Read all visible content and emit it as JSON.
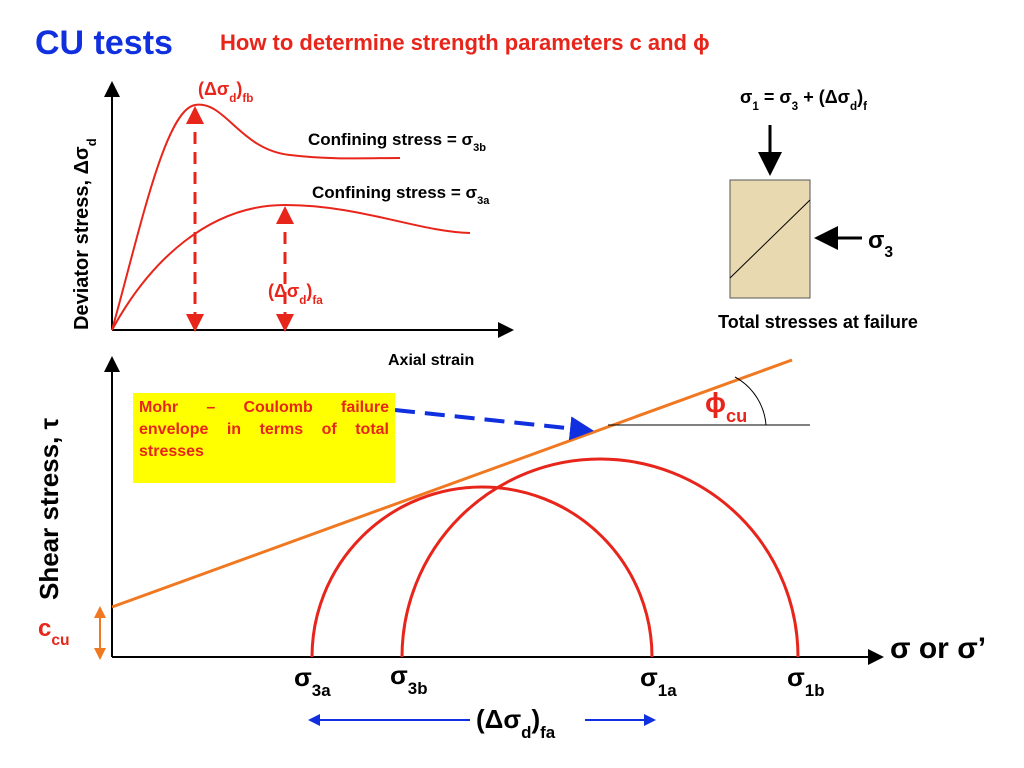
{
  "header": {
    "title": "CU tests",
    "subtitle": "How to determine strength parameters c and ϕ"
  },
  "top_chart": {
    "y_axis_label": [
      "Deviator stress, Δσ",
      "d"
    ],
    "x_axis_label": "Axial strain",
    "peak_b": [
      "(Δσ",
      "d",
      ")",
      "fb"
    ],
    "peak_a": [
      "(Δσ",
      "d",
      ")",
      "fa"
    ],
    "curve_b_label": [
      "Confining stress = σ",
      "3b"
    ],
    "curve_a_label": [
      "Confining stress = σ",
      "3a"
    ]
  },
  "specimen": {
    "equation": [
      "σ",
      "1",
      " = σ",
      "3",
      " + (Δσ",
      "d",
      ")",
      "f"
    ],
    "lateral": [
      "σ",
      "3"
    ],
    "caption": "Total stresses at failure"
  },
  "mohr": {
    "y_axis_label": "Shear stress, τ",
    "x_axis_label": "σ or σ’",
    "envelope_note": "Mohr – Coulomb failure envelope in terms of total stresses",
    "phi": [
      "ϕ",
      "cu"
    ],
    "c": [
      "c",
      "cu"
    ],
    "x_labels": [
      [
        "σ",
        "3a"
      ],
      [
        "σ",
        "3b"
      ],
      [
        "σ",
        "1a"
      ],
      [
        "σ",
        "1b"
      ]
    ],
    "delta": [
      "(Δσ",
      "d",
      ")",
      "fa"
    ]
  }
}
